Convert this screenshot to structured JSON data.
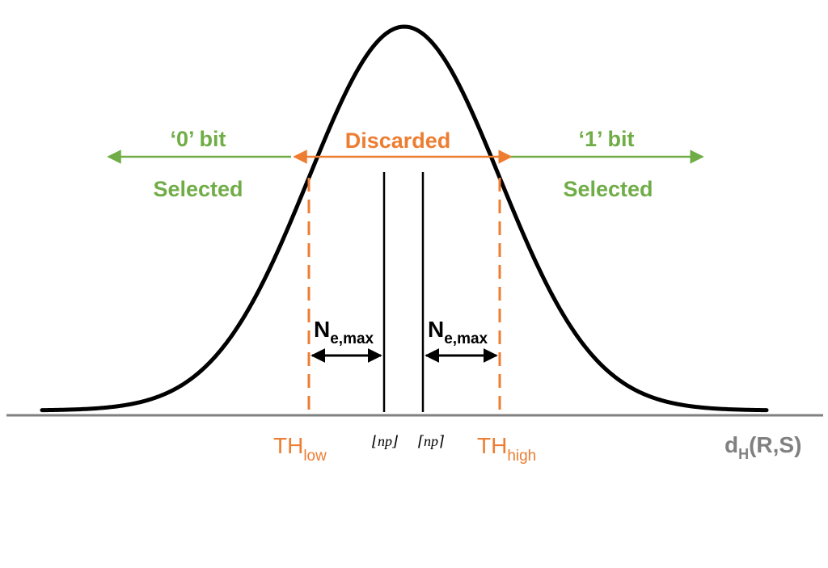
{
  "colors": {
    "curve": "#000000",
    "axis": "#808080",
    "selected": "#70ad47",
    "discarded": "#ed7d31",
    "threshold": "#ed7d31",
    "center_lines": "#000000"
  },
  "regions": {
    "left_bit": "‘0’ bit",
    "left_status": "Selected",
    "middle": "Discarded",
    "right_bit": "‘1’ bit",
    "right_status": "Selected"
  },
  "thresholds": {
    "low_main": "TH",
    "low_sub": "low",
    "high_main": "TH",
    "high_sub": "high"
  },
  "margins": {
    "left_main": "N",
    "left_sub": "e,max",
    "right_main": "N",
    "right_sub": "e,max"
  },
  "center_marks": {
    "left": "⌊np⌋",
    "right": "⌈np⌉"
  },
  "axis": {
    "label_main": "d",
    "label_sub": "H",
    "label_tail": "(R,S)"
  }
}
